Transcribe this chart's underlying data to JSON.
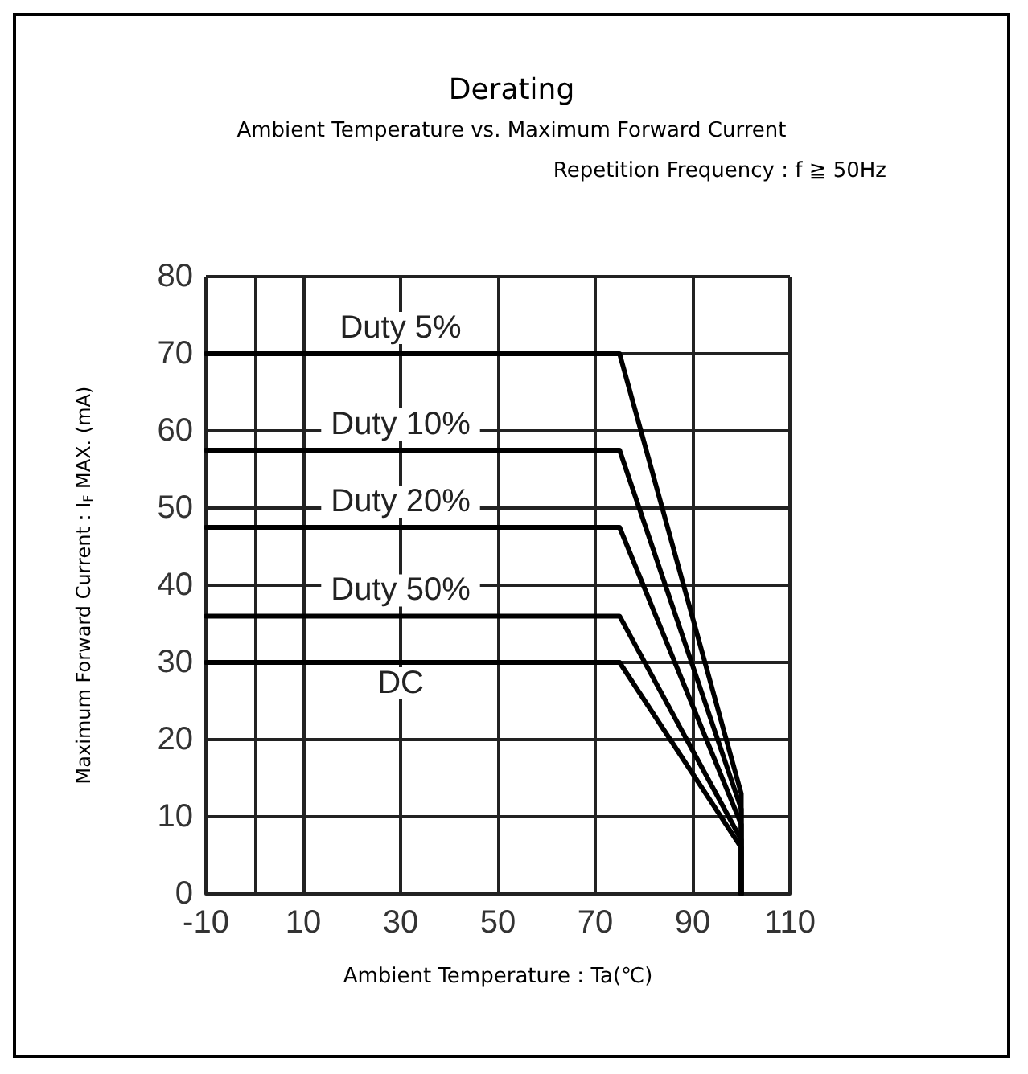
{
  "chart_data": {
    "type": "line",
    "title": "Derating",
    "subtitle": "Ambient Temperature vs. Maximum Forward Current",
    "annotations": [
      "Repetition Frequency : f ≧ 50Hz"
    ],
    "xlabel": "Ambient Temperature : Ta(℃)",
    "ylabel": "Maximum Forward Current : I$_{F}$ MAX. (mA)",
    "series": [
      {
        "name": "Duty 5%",
        "color": "#000000",
        "x": [
          -10,
          75,
          100,
          100
        ],
        "values": [
          70,
          70,
          13,
          0
        ]
      },
      {
        "name": "Duty 10%",
        "color": "#000000",
        "x": [
          -10,
          75,
          100,
          100
        ],
        "values": [
          57.5,
          57.5,
          11,
          0
        ]
      },
      {
        "name": "Duty 20%",
        "color": "#000000",
        "x": [
          -10,
          75,
          100,
          100
        ],
        "values": [
          47.5,
          47.5,
          9,
          0
        ]
      },
      {
        "name": "Duty 50%",
        "color": "#000000",
        "x": [
          -10,
          75,
          100,
          100
        ],
        "values": [
          36,
          36,
          7,
          0
        ]
      },
      {
        "name": "DC",
        "color": "#000000",
        "x": [
          -10,
          75,
          100,
          100
        ],
        "values": [
          30,
          30,
          6,
          0
        ]
      }
    ],
    "xlim": [
      -10,
      110
    ],
    "xticks": [
      -10,
      10,
      30,
      50,
      70,
      90,
      110
    ],
    "ylim": [
      0,
      80
    ],
    "yticks": [
      0,
      10,
      20,
      30,
      40,
      50,
      60,
      70,
      80
    ],
    "grid": true,
    "legend": false,
    "marker": "none",
    "line_style": "solid"
  }
}
